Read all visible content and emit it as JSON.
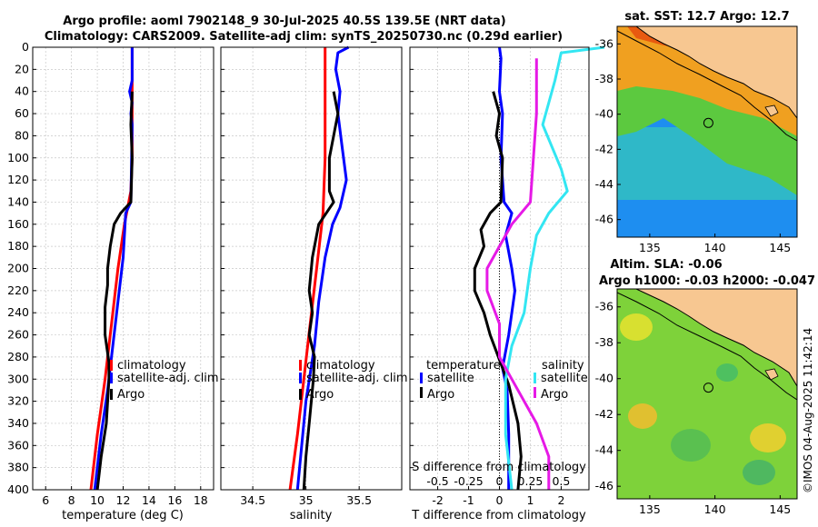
{
  "header": {
    "title_line1": "Argo profile: aoml 7902148_9 30-Jul-2025 40.5S 139.5E (NRT data)",
    "title_line2": "Climatology: CARS2009. Satellite-adj clim: synTS_20250730.nc (0.29d earlier)"
  },
  "map_sst": {
    "title": "sat. SST: 12.7 Argo: 12.7",
    "profile_marker": [
      139.5,
      -40.5
    ]
  },
  "map_sla": {
    "title_line1": "Altim. SLA: -0.06",
    "title_line2": "Argo h1000: -0.03 h2000: -0.047",
    "profile_marker": [
      139.5,
      -40.5
    ]
  },
  "watermark": "©IMOS 04-Aug-2025 11:42:14",
  "colors": {
    "climatology": "#ff0000",
    "satellite": "#0000ff",
    "argo": "#000000",
    "sat_salinity": "#33e6f2",
    "argo_salinity": "#e619e6",
    "land": "#f7c791"
  },
  "chart_data": [
    {
      "type": "line",
      "id": "temperature",
      "xlabel": "temperature (deg C)",
      "ylabel": "depth",
      "xlim": [
        5,
        19
      ],
      "ylim": [
        400,
        0
      ],
      "xticks": [
        "6",
        "8",
        "10",
        "12",
        "14",
        "16",
        "18"
      ],
      "yticks": [
        "0",
        "20",
        "40",
        "60",
        "80",
        "100",
        "120",
        "140",
        "160",
        "180",
        "200",
        "220",
        "240",
        "260",
        "280",
        "300",
        "320",
        "340",
        "360",
        "380",
        "400"
      ],
      "legend": [
        "climatology",
        "satellite-adj. clim",
        "Argo"
      ],
      "series": [
        {
          "name": "climatology",
          "points": [
            [
              12.7,
              0
            ],
            [
              12.7,
              100
            ],
            [
              12.6,
              130
            ],
            [
              12.1,
              160
            ],
            [
              11.6,
              200
            ],
            [
              11.1,
              250
            ],
            [
              10.6,
              300
            ],
            [
              10.0,
              350
            ],
            [
              9.5,
              400
            ]
          ]
        },
        {
          "name": "satellite-adj. clim",
          "points": [
            [
              12.7,
              0
            ],
            [
              12.7,
              30
            ],
            [
              12.5,
              40
            ],
            [
              12.7,
              50
            ],
            [
              12.6,
              60
            ],
            [
              12.7,
              70
            ],
            [
              12.6,
              140
            ],
            [
              12.2,
              150
            ],
            [
              12.0,
              190
            ],
            [
              11.6,
              230
            ],
            [
              11.2,
              270
            ],
            [
              10.8,
              310
            ],
            [
              10.3,
              350
            ],
            [
              9.8,
              400
            ]
          ]
        },
        {
          "name": "Argo",
          "points": [
            [
              12.7,
              40
            ],
            [
              12.6,
              70
            ],
            [
              12.7,
              100
            ],
            [
              12.6,
              140
            ],
            [
              11.8,
              150
            ],
            [
              11.3,
              160
            ],
            [
              11.0,
              180
            ],
            [
              10.8,
              200
            ],
            [
              10.8,
              215
            ],
            [
              10.6,
              235
            ],
            [
              10.6,
              260
            ],
            [
              10.9,
              285
            ],
            [
              10.9,
              300
            ],
            [
              10.7,
              340
            ],
            [
              10.3,
              370
            ],
            [
              10.0,
              400
            ]
          ]
        }
      ]
    },
    {
      "type": "line",
      "id": "salinity",
      "xlabel": "salinity",
      "ylabel": "depth",
      "xlim": [
        34.2,
        35.9
      ],
      "ylim": [
        400,
        0
      ],
      "xticks": [
        "34.5",
        "35",
        "35.5"
      ],
      "legend": [
        "climatology",
        "satellite-adj. clim",
        "Argo"
      ],
      "series": [
        {
          "name": "climatology",
          "points": [
            [
              35.18,
              0
            ],
            [
              35.18,
              100
            ],
            [
              35.16,
              150
            ],
            [
              35.1,
              200
            ],
            [
              35.04,
              250
            ],
            [
              34.98,
              300
            ],
            [
              34.92,
              350
            ],
            [
              34.85,
              400
            ]
          ]
        },
        {
          "name": "satellite-adj. clim",
          "points": [
            [
              35.4,
              0
            ],
            [
              35.3,
              5
            ],
            [
              35.28,
              20
            ],
            [
              35.32,
              40
            ],
            [
              35.3,
              60
            ],
            [
              35.34,
              90
            ],
            [
              35.38,
              120
            ],
            [
              35.32,
              145
            ],
            [
              35.25,
              160
            ],
            [
              35.18,
              190
            ],
            [
              35.12,
              230
            ],
            [
              35.08,
              270
            ],
            [
              35.0,
              320
            ],
            [
              34.92,
              400
            ]
          ]
        },
        {
          "name": "Argo",
          "points": [
            [
              35.26,
              40
            ],
            [
              35.3,
              60
            ],
            [
              35.26,
              80
            ],
            [
              35.22,
              100
            ],
            [
              35.22,
              130
            ],
            [
              35.26,
              140
            ],
            [
              35.12,
              160
            ],
            [
              35.06,
              190
            ],
            [
              35.03,
              220
            ],
            [
              35.06,
              240
            ],
            [
              35.03,
              260
            ],
            [
              35.08,
              280
            ],
            [
              35.07,
              300
            ],
            [
              35.03,
              340
            ],
            [
              35.0,
              370
            ],
            [
              34.98,
              400
            ]
          ]
        }
      ]
    },
    {
      "type": "line",
      "id": "differences",
      "xlabel": "T difference from climatology",
      "xlabel_top": "S difference from climatology",
      "xlim": [
        -2.9,
        2.9
      ],
      "ylim": [
        400,
        0
      ],
      "xticks": [
        "-2",
        "-1",
        "0",
        "1",
        "2"
      ],
      "s_xticks": [
        "-0.5",
        "-0.25",
        "0",
        "0.25",
        "0.5"
      ],
      "legend_temperature_title": "temperature",
      "legend_salinity_title": "salinity",
      "legend_items": [
        "satellite",
        "Argo",
        "satellite",
        "Argo"
      ],
      "series": [
        {
          "name": "T satellite",
          "points": [
            [
              0.0,
              0
            ],
            [
              0.05,
              10
            ],
            [
              0.0,
              40
            ],
            [
              0.1,
              60
            ],
            [
              0.05,
              100
            ],
            [
              0.15,
              140
            ],
            [
              0.4,
              150
            ],
            [
              0.2,
              170
            ],
            [
              0.4,
              200
            ],
            [
              0.5,
              220
            ],
            [
              0.3,
              260
            ],
            [
              0.1,
              290
            ],
            [
              0.25,
              310
            ],
            [
              0.3,
              350
            ],
            [
              0.3,
              400
            ]
          ]
        },
        {
          "name": "T Argo",
          "points": [
            [
              -0.2,
              40
            ],
            [
              0.0,
              60
            ],
            [
              -0.1,
              80
            ],
            [
              0.1,
              100
            ],
            [
              0.05,
              140
            ],
            [
              -0.3,
              150
            ],
            [
              -0.6,
              165
            ],
            [
              -0.5,
              180
            ],
            [
              -0.8,
              200
            ],
            [
              -0.8,
              220
            ],
            [
              -0.5,
              240
            ],
            [
              -0.3,
              260
            ],
            [
              0.1,
              290
            ],
            [
              0.3,
              305
            ],
            [
              0.6,
              340
            ],
            [
              0.7,
              370
            ],
            [
              0.6,
              400
            ]
          ]
        },
        {
          "name": "S satellite",
          "points": [
            [
              0.85,
              0
            ],
            [
              0.5,
              5
            ],
            [
              0.45,
              30
            ],
            [
              0.35,
              70
            ],
            [
              0.5,
              110
            ],
            [
              0.55,
              130
            ],
            [
              0.4,
              150
            ],
            [
              0.3,
              170
            ],
            [
              0.25,
              200
            ],
            [
              0.2,
              240
            ],
            [
              0.1,
              270
            ],
            [
              0.05,
              300
            ],
            [
              0.05,
              350
            ],
            [
              0.1,
              400
            ]
          ]
        },
        {
          "name": "S Argo",
          "points": [
            [
              0.3,
              10
            ],
            [
              0.3,
              60
            ],
            [
              0.25,
              140
            ],
            [
              0.1,
              160
            ],
            [
              0.0,
              180
            ],
            [
              -0.1,
              200
            ],
            [
              -0.1,
              220
            ],
            [
              0.0,
              250
            ],
            [
              0.0,
              280
            ],
            [
              0.1,
              300
            ],
            [
              0.3,
              340
            ],
            [
              0.4,
              370
            ],
            [
              0.4,
              400
            ]
          ]
        }
      ]
    }
  ]
}
